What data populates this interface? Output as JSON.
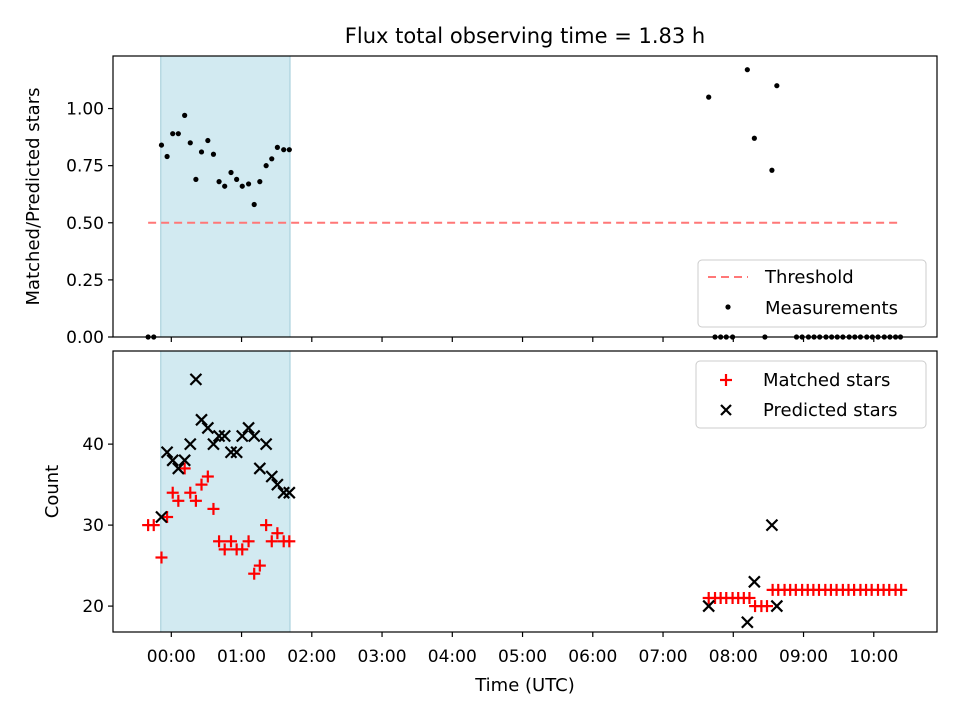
{
  "chart_data": {
    "type": "scatter",
    "title": "Flux total observing time = 1.83 h",
    "xlabel": "Time (UTC)",
    "x_unit": "hours since 00:00 UTC",
    "x_ticks": [
      {
        "v": 0,
        "label": "00:00"
      },
      {
        "v": 1,
        "label": "01:00"
      },
      {
        "v": 2,
        "label": "02:00"
      },
      {
        "v": 3,
        "label": "03:00"
      },
      {
        "v": 4,
        "label": "04:00"
      },
      {
        "v": 5,
        "label": "05:00"
      },
      {
        "v": 6,
        "label": "06:00"
      },
      {
        "v": 7,
        "label": "07:00"
      },
      {
        "v": 8,
        "label": "08:00"
      },
      {
        "v": 9,
        "label": "09:00"
      },
      {
        "v": 10,
        "label": "10:00"
      }
    ],
    "xlim": [
      -0.83,
      10.9
    ],
    "shaded_span": [
      -0.15,
      1.69
    ],
    "panels": [
      {
        "id": "ratio",
        "ylabel": "Matched/Predicted stars",
        "ylim": [
          0,
          1.23
        ],
        "yticks": [
          {
            "v": 0,
            "label": "0.00"
          },
          {
            "v": 0.25,
            "label": "0.25"
          },
          {
            "v": 0.5,
            "label": "0.50"
          },
          {
            "v": 0.75,
            "label": "0.75"
          },
          {
            "v": 1.0,
            "label": "1.00"
          }
        ],
        "threshold": {
          "name": "Threshold",
          "value": 0.5,
          "x_range": [
            -0.33,
            10.38
          ],
          "color": "#ff7777"
        },
        "legend": {
          "position": "lower-right",
          "entries": [
            "Threshold",
            "Measurements"
          ]
        },
        "series": [
          {
            "name": "Measurements",
            "marker": "dot",
            "color": "#000000",
            "x": [
              -0.33,
              -0.25,
              -0.14,
              -0.06,
              0.02,
              0.1,
              0.19,
              0.27,
              0.35,
              0.43,
              0.52,
              0.6,
              0.68,
              0.76,
              0.85,
              0.93,
              1.01,
              1.1,
              1.18,
              1.26,
              1.35,
              1.43,
              1.51,
              1.6,
              1.68,
              7.65,
              7.74,
              7.82,
              7.9,
              7.99,
              8.2,
              8.3,
              8.45,
              8.55,
              8.62,
              8.9,
              8.98,
              9.07,
              9.15,
              9.23,
              9.32,
              9.4,
              9.48,
              9.56,
              9.65,
              9.73,
              9.81,
              9.9,
              9.98,
              10.06,
              10.15,
              10.23,
              10.31,
              10.38
            ],
            "y": [
              0,
              0,
              0.84,
              0.79,
              0.89,
              0.89,
              0.97,
              0.85,
              0.69,
              0.81,
              0.86,
              0.8,
              0.68,
              0.66,
              0.72,
              0.69,
              0.66,
              0.67,
              0.58,
              0.68,
              0.75,
              0.78,
              0.83,
              0.82,
              0.82,
              1.05,
              0,
              0,
              0,
              0,
              1.17,
              0.87,
              0,
              0.73,
              1.1,
              0,
              0,
              0,
              0,
              0,
              0,
              0,
              0,
              0,
              0,
              0,
              0,
              0,
              0,
              0,
              0,
              0,
              0,
              0
            ]
          }
        ]
      },
      {
        "id": "counts",
        "ylabel": "Count",
        "ylim": [
          16.8,
          51.5
        ],
        "yticks": [
          {
            "v": 20,
            "label": "20"
          },
          {
            "v": 30,
            "label": "30"
          },
          {
            "v": 40,
            "label": "40"
          }
        ],
        "legend": {
          "position": "top-right",
          "entries": [
            "Matched stars",
            "Predicted stars"
          ]
        },
        "series": [
          {
            "name": "Matched stars",
            "marker": "plus",
            "color": "#ff0000",
            "x": [
              -0.33,
              -0.25,
              -0.14,
              -0.06,
              0.02,
              0.1,
              0.19,
              0.27,
              0.35,
              0.43,
              0.52,
              0.6,
              0.68,
              0.76,
              0.85,
              0.93,
              1.01,
              1.1,
              1.18,
              1.26,
              1.35,
              1.43,
              1.51,
              1.6,
              1.68,
              7.65,
              7.74,
              7.82,
              7.9,
              7.99,
              8.07,
              8.15,
              8.23,
              8.31,
              8.4,
              8.48,
              8.56,
              8.64,
              8.73,
              8.81,
              8.89,
              8.98,
              9.06,
              9.14,
              9.22,
              9.31,
              9.39,
              9.47,
              9.56,
              9.64,
              9.72,
              9.81,
              9.89,
              9.97,
              10.06,
              10.14,
              10.22,
              10.31,
              10.39
            ],
            "y": [
              30,
              30,
              26,
              31,
              34,
              33,
              37,
              34,
              33,
              35,
              36,
              32,
              28,
              27,
              28,
              27,
              27,
              28,
              24,
              25,
              30,
              28,
              29,
              28,
              28,
              21,
              21,
              21,
              21,
              21,
              21,
              21,
              21,
              20,
              20,
              20,
              22,
              22,
              22,
              22,
              22,
              22,
              22,
              22,
              22,
              22,
              22,
              22,
              22,
              22,
              22,
              22,
              22,
              22,
              22,
              22,
              22,
              22,
              22
            ]
          },
          {
            "name": "Predicted stars",
            "marker": "x",
            "color": "#000000",
            "x": [
              -0.14,
              -0.06,
              0.02,
              0.1,
              0.19,
              0.27,
              0.35,
              0.43,
              0.52,
              0.6,
              0.68,
              0.76,
              0.85,
              0.93,
              1.01,
              1.1,
              1.18,
              1.26,
              1.35,
              1.43,
              1.51,
              1.6,
              1.68,
              7.65,
              8.2,
              8.3,
              8.55,
              8.62
            ],
            "y": [
              31,
              39,
              38,
              37,
              38,
              40,
              48,
              43,
              42,
              40,
              41,
              41,
              39,
              39,
              41,
              42,
              41,
              37,
              40,
              36,
              35,
              34,
              34,
              20,
              18,
              23,
              30,
              20
            ]
          }
        ]
      }
    ]
  }
}
